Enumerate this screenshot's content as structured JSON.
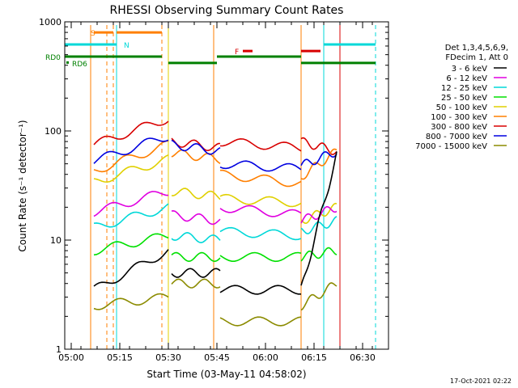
{
  "chart_data": {
    "type": "line",
    "title": "RHESSI Observing Summary Count Rates",
    "xlabel": "Start Time (03-May-11 04:58:02)",
    "ylabel": "Count Rate (s⁻¹ detector⁻¹)",
    "x_ticks": [
      "05:00",
      "05:15",
      "05:30",
      "05:45",
      "06:00",
      "06:15",
      "06:30"
    ],
    "y_ticks": [
      "1",
      "10",
      "100",
      "1000"
    ],
    "xlim": [
      "04:58",
      "06:38"
    ],
    "ylim": [
      1,
      1000
    ],
    "y_scale": "log",
    "legend": {
      "placement": "right",
      "header": [
        "Det 1,3,4,5,6,9,",
        "FDecim 1, Att 0"
      ],
      "entries": [
        {
          "label": "3 - 6 keV",
          "color": "#000000"
        },
        {
          "label": "6 - 12 keV",
          "color": "#e000e0"
        },
        {
          "label": "12 - 25 keV",
          "color": "#00d8d8"
        },
        {
          "label": "25 - 50 keV",
          "color": "#00e000"
        },
        {
          "label": "50 - 100 keV",
          "color": "#e0d000"
        },
        {
          "label": "100 - 300 keV",
          "color": "#ff7f00"
        },
        {
          "label": "300 - 800 keV",
          "color": "#d80000"
        },
        {
          "label": "800 - 7000 keV",
          "color": "#0000e0"
        },
        {
          "label": "7000 - 15000 keV",
          "color": "#8b8b00"
        }
      ]
    },
    "bar_labels": {
      "s": "S",
      "n": "N",
      "f": "F",
      "rd0": "RD0",
      "rd6": "RD6"
    },
    "segments": [
      [
        "05:07",
        "05:30"
      ],
      [
        "05:31",
        "05:46"
      ],
      [
        "05:46",
        "06:11"
      ],
      [
        "06:11",
        "06:22"
      ]
    ],
    "series": [
      {
        "color": "#d80000",
        "values": [
          [
            75,
            130
          ],
          [
            80,
            70
          ],
          [
            80,
            70
          ],
          [
            80,
            65
          ]
        ]
      },
      {
        "color": "#ff7f00",
        "values": [
          [
            43,
            75
          ],
          [
            63,
            55
          ],
          [
            40,
            33
          ],
          [
            38,
            65
          ]
        ]
      },
      {
        "color": "#0000e0",
        "values": [
          [
            53,
            90
          ],
          [
            75,
            65
          ],
          [
            50,
            45
          ],
          [
            48,
            65
          ]
        ]
      },
      {
        "color": "#e0d000",
        "values": [
          [
            34,
            55
          ],
          [
            28,
            25
          ],
          [
            24,
            22
          ],
          [
            15,
            20
          ]
        ]
      },
      {
        "color": "#e000e0",
        "values": [
          [
            18,
            28
          ],
          [
            17,
            15
          ],
          [
            20,
            17
          ],
          [
            15,
            20
          ]
        ]
      },
      {
        "color": "#00d8d8",
        "values": [
          [
            13,
            20
          ],
          [
            11,
            10
          ],
          [
            12,
            11
          ],
          [
            12,
            15
          ]
        ]
      },
      {
        "color": "#00e000",
        "values": [
          [
            8,
            11
          ],
          [
            7,
            7
          ],
          [
            7,
            7
          ],
          [
            7,
            8
          ]
        ]
      },
      {
        "color": "#000000",
        "values": [
          [
            3.5,
            8
          ],
          [
            5,
            5
          ],
          [
            3.5,
            3.5
          ],
          [
            3.5,
            60
          ]
        ]
      },
      {
        "color": "#8b8b00",
        "values": [
          [
            2.5,
            3
          ],
          [
            4,
            4
          ],
          [
            1.8,
            1.8
          ],
          [
            2.5,
            4
          ]
        ]
      }
    ]
  },
  "footer_date": "17-Oct-2021 02:22"
}
